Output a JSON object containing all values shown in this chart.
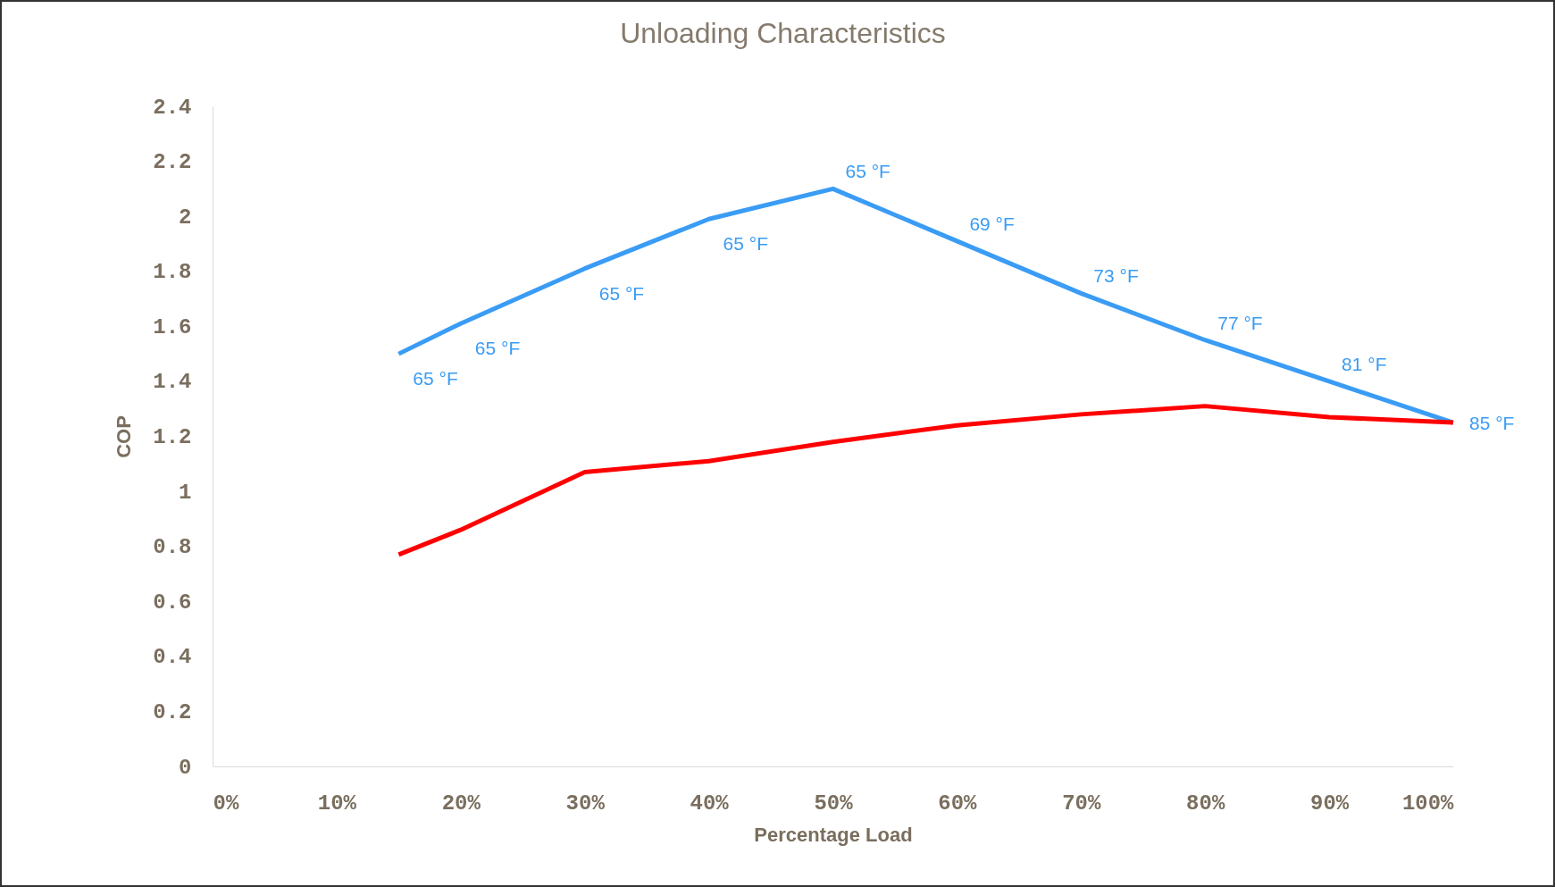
{
  "chart_data": {
    "type": "line",
    "title": "Unloading Characteristics",
    "xlabel": "Percentage Load",
    "ylabel": "COP",
    "x": [
      15,
      20,
      30,
      40,
      50,
      60,
      70,
      80,
      90,
      100
    ],
    "series": [
      {
        "color": "#3a9cf4",
        "values": [
          1.5,
          1.61,
          1.81,
          1.99,
          2.1,
          1.91,
          1.72,
          1.55,
          1.4,
          1.25
        ]
      },
      {
        "color": "#ff0000",
        "values": [
          0.77,
          0.86,
          1.07,
          1.11,
          1.18,
          1.24,
          1.28,
          1.31,
          1.27,
          1.25
        ]
      }
    ],
    "xlim": [
      0,
      100
    ],
    "xticks": [
      {
        "value": 0,
        "label": "0%"
      },
      {
        "value": 10,
        "label": "10%"
      },
      {
        "value": 20,
        "label": "20%"
      },
      {
        "value": 30,
        "label": "30%"
      },
      {
        "value": 40,
        "label": "40%"
      },
      {
        "value": 50,
        "label": "50%"
      },
      {
        "value": 60,
        "label": "60%"
      },
      {
        "value": 70,
        "label": "70%"
      },
      {
        "value": 80,
        "label": "80%"
      },
      {
        "value": 90,
        "label": "90%"
      },
      {
        "value": 100,
        "label": "100%"
      }
    ],
    "ylim": [
      0,
      2.4
    ],
    "yticks": [
      0,
      0.2,
      0.4,
      0.6,
      0.8,
      1,
      1.2,
      1.4,
      1.6,
      1.8,
      2,
      2.2,
      2.4
    ],
    "annotations": [
      {
        "text": "65 °F",
        "x": 15,
        "y": 1.5
      },
      {
        "text": "65 °F",
        "x": 20,
        "y": 1.61
      },
      {
        "text": "65 °F",
        "x": 30,
        "y": 1.81
      },
      {
        "text": "65 °F",
        "x": 40,
        "y": 1.99
      },
      {
        "text": "65 °F",
        "x": 50,
        "y": 2.1
      },
      {
        "text": "69 °F",
        "x": 60,
        "y": 1.91
      },
      {
        "text": "73 °F",
        "x": 70,
        "y": 1.72
      },
      {
        "text": "77 °F",
        "x": 80,
        "y": 1.55
      },
      {
        "text": "81 °F",
        "x": 90,
        "y": 1.4
      },
      {
        "text": "85 °F",
        "x": 100,
        "y": 1.25
      }
    ],
    "grid": false,
    "legend": false,
    "marker": "none",
    "line_style": "solid"
  }
}
